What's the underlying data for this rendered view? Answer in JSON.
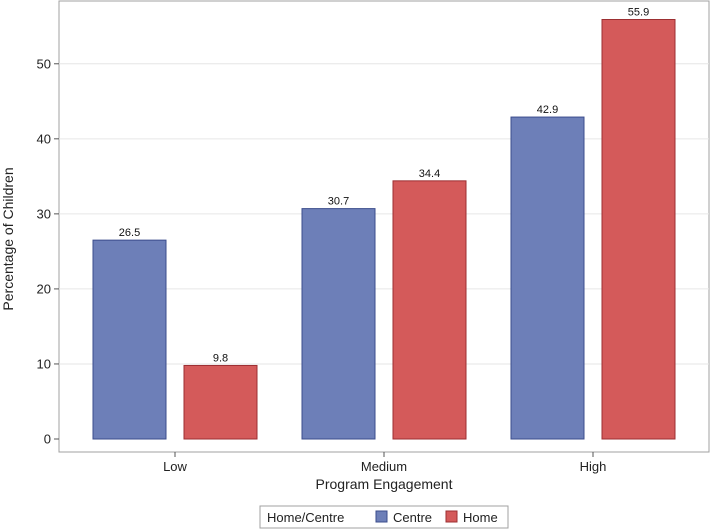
{
  "chart_data": {
    "type": "bar",
    "categories": [
      "Low",
      "Medium",
      "High"
    ],
    "series": [
      {
        "name": "Centre",
        "values": [
          26.5,
          30.7,
          42.9
        ],
        "color": "#6d7fb8",
        "edge": "#3b4c8c"
      },
      {
        "name": "Home",
        "values": [
          9.8,
          34.4,
          55.9
        ],
        "color": "#d45a5a",
        "edge": "#9c2f32"
      }
    ],
    "xlabel": "Program Engagement",
    "ylabel": "Percentage of Children",
    "ylim": [
      0,
      57.5
    ],
    "yticks": [
      0,
      10,
      20,
      30,
      40,
      50
    ],
    "grid": true,
    "legend": {
      "title": "Home/Centre",
      "placement": "bottom-center"
    }
  }
}
